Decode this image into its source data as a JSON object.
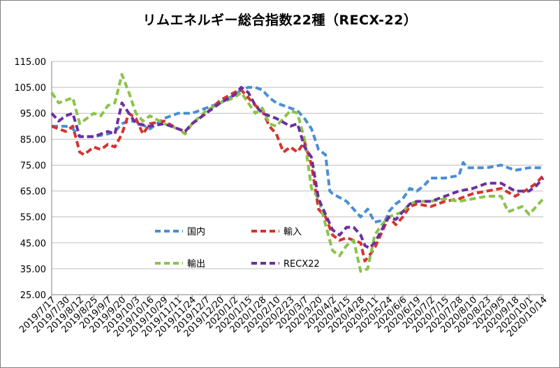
{
  "chart_data": {
    "type": "line",
    "title": "リムエネルギー総合指数22種（RECX-22）",
    "ylim": [
      25,
      115
    ],
    "yticks": [
      "115.00",
      "105.00",
      "95.00",
      "85.00",
      "75.00",
      "65.00",
      "55.00",
      "45.00",
      "35.00",
      "25.00"
    ],
    "categories": [
      "2019/7/17",
      "2019/7/30",
      "2019/8/12",
      "2019/8/25",
      "2019/9/7",
      "2019/9/20",
      "2019/10/3",
      "2019/10/16",
      "2019/10/29",
      "2019/11/11",
      "2019/11/24",
      "2019/12/7",
      "2019/12/20",
      "2020/1/2",
      "2020/1/15",
      "2020/1/28",
      "2020/2/10",
      "2020/2/23",
      "2020/3/7",
      "2020/3/20",
      "2020/4/2",
      "2020/4/15",
      "2020/4/28",
      "2020/5/11",
      "2020/5/24",
      "2020/6/6",
      "2020/6/19",
      "2020/7/2",
      "2020/7/15",
      "2020/7/28",
      "2020/8/10",
      "2020/8/23",
      "2020/9/5",
      "2020/9/18",
      "2020/10/1",
      "2020/10/14"
    ],
    "grid": true,
    "legend_position": "inside-bottom-left",
    "series": [
      {
        "name": "国内",
        "color": "#4a8ed3",
        "values": [
          [
            0,
            90
          ],
          [
            1,
            90
          ],
          [
            1.5,
            89
          ],
          [
            2,
            86
          ],
          [
            3,
            86
          ],
          [
            4,
            87
          ],
          [
            4.5,
            88
          ],
          [
            5,
            91
          ],
          [
            5.5,
            92
          ],
          [
            6,
            92
          ],
          [
            7,
            89
          ],
          [
            8,
            93
          ],
          [
            9,
            95
          ],
          [
            10,
            95
          ],
          [
            11,
            97
          ],
          [
            12,
            99
          ],
          [
            13,
            102
          ],
          [
            13.5,
            104
          ],
          [
            14,
            105
          ],
          [
            14.5,
            105
          ],
          [
            15,
            104
          ],
          [
            15.5,
            101
          ],
          [
            16,
            99
          ],
          [
            17,
            97
          ],
          [
            17.5,
            96
          ],
          [
            18,
            93
          ],
          [
            18.5,
            89
          ],
          [
            19,
            81
          ],
          [
            19.5,
            79
          ],
          [
            19.8,
            65
          ],
          [
            20,
            64
          ],
          [
            21,
            61
          ],
          [
            22,
            55
          ],
          [
            22.5,
            58
          ],
          [
            23,
            53
          ],
          [
            23.8,
            54
          ],
          [
            24,
            57
          ],
          [
            24.5,
            60
          ],
          [
            25,
            62
          ],
          [
            25.5,
            66
          ],
          [
            26,
            65
          ],
          [
            26.5,
            67
          ],
          [
            27,
            70
          ],
          [
            28,
            70
          ],
          [
            29,
            71
          ],
          [
            29.3,
            76
          ],
          [
            29.6,
            74
          ],
          [
            30,
            74
          ],
          [
            31,
            74
          ],
          [
            32,
            75
          ],
          [
            33,
            73
          ],
          [
            34,
            74
          ],
          [
            35,
            74
          ]
        ]
      },
      {
        "name": "輸入",
        "color": "#d6332d",
        "values": [
          [
            0,
            90
          ],
          [
            1,
            88
          ],
          [
            1.5,
            90
          ],
          [
            2,
            80
          ],
          [
            2.3,
            79
          ],
          [
            3,
            82
          ],
          [
            3.5,
            81
          ],
          [
            4,
            83
          ],
          [
            4.5,
            82
          ],
          [
            5,
            87
          ],
          [
            5.5,
            95
          ],
          [
            6,
            93
          ],
          [
            6.5,
            87
          ],
          [
            7,
            91
          ],
          [
            8,
            92
          ],
          [
            9,
            89
          ],
          [
            9.5,
            88
          ],
          [
            10,
            91
          ],
          [
            11,
            95
          ],
          [
            12,
            100
          ],
          [
            13,
            103
          ],
          [
            13.5,
            104
          ],
          [
            14,
            101
          ],
          [
            14.5,
            98
          ],
          [
            15,
            96
          ],
          [
            15.5,
            90
          ],
          [
            16,
            87
          ],
          [
            16.5,
            80
          ],
          [
            17,
            82
          ],
          [
            17.5,
            80
          ],
          [
            18,
            84
          ],
          [
            18.5,
            75
          ],
          [
            19,
            58
          ],
          [
            19.5,
            55
          ],
          [
            20,
            48
          ],
          [
            20.5,
            46
          ],
          [
            21,
            47
          ],
          [
            21.5,
            46
          ],
          [
            22,
            45
          ],
          [
            22.3,
            38
          ],
          [
            22.6,
            40
          ],
          [
            23,
            43
          ],
          [
            23.5,
            49
          ],
          [
            24,
            55
          ],
          [
            24.5,
            52
          ],
          [
            25,
            55
          ],
          [
            25.5,
            59
          ],
          [
            26,
            60
          ],
          [
            27,
            59
          ],
          [
            28,
            61
          ],
          [
            29,
            62
          ],
          [
            30,
            64
          ],
          [
            31,
            65
          ],
          [
            32,
            66
          ],
          [
            33,
            63
          ],
          [
            34,
            66
          ],
          [
            34.5,
            68
          ],
          [
            35,
            71
          ]
        ]
      },
      {
        "name": "輸出",
        "color": "#8bc34a",
        "values": [
          [
            0,
            103
          ],
          [
            0.5,
            99
          ],
          [
            1,
            100
          ],
          [
            1.5,
            101
          ],
          [
            2,
            91
          ],
          [
            2.5,
            93
          ],
          [
            3,
            95
          ],
          [
            3.5,
            94
          ],
          [
            4,
            98
          ],
          [
            4.5,
            99
          ],
          [
            5,
            110
          ],
          [
            5.5,
            103
          ],
          [
            6,
            95
          ],
          [
            6.5,
            92
          ],
          [
            7,
            94
          ],
          [
            8,
            91
          ],
          [
            9,
            89
          ],
          [
            9.5,
            87
          ],
          [
            10,
            91
          ],
          [
            11,
            96
          ],
          [
            12,
            99
          ],
          [
            13,
            101
          ],
          [
            13.5,
            103
          ],
          [
            14,
            99
          ],
          [
            14.5,
            95
          ],
          [
            15,
            97
          ],
          [
            15.5,
            91
          ],
          [
            16,
            90
          ],
          [
            17,
            96
          ],
          [
            17.5,
            95
          ],
          [
            18,
            85
          ],
          [
            18.5,
            66
          ],
          [
            19,
            62
          ],
          [
            19.5,
            52
          ],
          [
            20,
            42
          ],
          [
            20.5,
            40
          ],
          [
            21,
            44
          ],
          [
            21.5,
            46
          ],
          [
            22,
            34
          ],
          [
            22.5,
            35
          ],
          [
            23,
            48
          ],
          [
            23.5,
            52
          ],
          [
            24,
            55
          ],
          [
            24.5,
            56
          ],
          [
            25,
            57
          ],
          [
            25.5,
            60
          ],
          [
            26,
            61
          ],
          [
            27,
            61
          ],
          [
            28,
            62
          ],
          [
            29,
            61
          ],
          [
            30,
            62
          ],
          [
            31,
            63
          ],
          [
            32,
            63
          ],
          [
            32.5,
            57
          ],
          [
            33,
            58
          ],
          [
            33.5,
            59
          ],
          [
            34,
            56
          ],
          [
            34.5,
            59
          ],
          [
            35,
            62
          ]
        ]
      },
      {
        "name": "RECX22",
        "color": "#6b2fa0",
        "values": [
          [
            0,
            95
          ],
          [
            0.5,
            92
          ],
          [
            1,
            94
          ],
          [
            1.5,
            95
          ],
          [
            2,
            86
          ],
          [
            3,
            86
          ],
          [
            3.5,
            87
          ],
          [
            4,
            88
          ],
          [
            4.5,
            87
          ],
          [
            5,
            99
          ],
          [
            5.5,
            95
          ],
          [
            6,
            91
          ],
          [
            7,
            90
          ],
          [
            8,
            91
          ],
          [
            9,
            89
          ],
          [
            9.5,
            88
          ],
          [
            10,
            91
          ],
          [
            11,
            95
          ],
          [
            12,
            99
          ],
          [
            13,
            102
          ],
          [
            13.5,
            105
          ],
          [
            14,
            103
          ],
          [
            14.5,
            98
          ],
          [
            15,
            95
          ],
          [
            16,
            93
          ],
          [
            17,
            90
          ],
          [
            17.5,
            91
          ],
          [
            18,
            82
          ],
          [
            18.5,
            78
          ],
          [
            19,
            62
          ],
          [
            19.5,
            56
          ],
          [
            20,
            50
          ],
          [
            20.5,
            48
          ],
          [
            21,
            51
          ],
          [
            21.5,
            51
          ],
          [
            22,
            48
          ],
          [
            22.3,
            44
          ],
          [
            22.6,
            43
          ],
          [
            23,
            45
          ],
          [
            23.5,
            50
          ],
          [
            24,
            55
          ],
          [
            24.5,
            54
          ],
          [
            25,
            57
          ],
          [
            25.5,
            60
          ],
          [
            26,
            61
          ],
          [
            27,
            61
          ],
          [
            28,
            63
          ],
          [
            29,
            65
          ],
          [
            30,
            66
          ],
          [
            31,
            68
          ],
          [
            32,
            68
          ],
          [
            33,
            65
          ],
          [
            34,
            65
          ],
          [
            34.5,
            67
          ],
          [
            35,
            70
          ]
        ]
      }
    ]
  }
}
